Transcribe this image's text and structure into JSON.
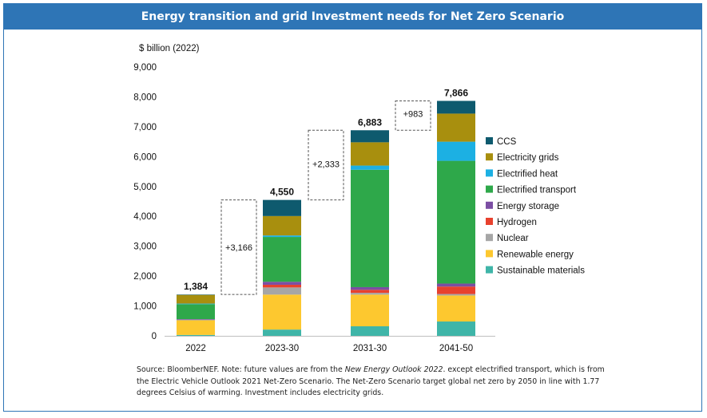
{
  "banner_title": "Energy transition and grid Investment needs for Net Zero Scenario",
  "chart_data": {
    "type": "bar",
    "stacked": true,
    "ylabel": "$ billion (2022)",
    "ylim": [
      0,
      9000
    ],
    "yticks": [
      0,
      1000,
      2000,
      3000,
      4000,
      5000,
      6000,
      7000,
      8000,
      9000
    ],
    "ytick_labels": [
      "0",
      "1,000",
      "2,000",
      "3,000",
      "4,000",
      "5,000",
      "6,000",
      "7,000",
      "8,000",
      "9,000"
    ],
    "categories": [
      "2022",
      "2023-30",
      "2031-30",
      "2041-50"
    ],
    "totals": [
      "1,384",
      "4,550",
      "6,883",
      "7,866"
    ],
    "increments": [
      "+3,166",
      "+2,333",
      "+983"
    ],
    "grid": false,
    "legend_position": "right",
    "series": [
      {
        "name": "Sustainable materials",
        "color": "#3fb5a8",
        "values": [
          30,
          210,
          320,
          480
        ]
      },
      {
        "name": "Renewable energy",
        "color": "#fdc82f",
        "values": [
          490,
          1170,
          1060,
          870
        ]
      },
      {
        "name": "Nuclear",
        "color": "#a6a6a6",
        "values": [
          20,
          240,
          60,
          50
        ]
      },
      {
        "name": "Hydrogen",
        "color": "#e8412e",
        "values": [
          0,
          90,
          100,
          250
        ]
      },
      {
        "name": "Energy storage",
        "color": "#7b4ea3",
        "values": [
          20,
          100,
          90,
          100
        ]
      },
      {
        "name": "Electrified transport",
        "color": "#2ea84a",
        "values": [
          500,
          1500,
          3930,
          4110
        ]
      },
      {
        "name": "Electrified heat",
        "color": "#1cb0e3",
        "values": [
          20,
          50,
          140,
          640
        ]
      },
      {
        "name": "Electricity grids",
        "color": "#a88f0e",
        "values": [
          290,
          650,
          780,
          940
        ]
      },
      {
        "name": "CCS",
        "color": "#0e5a6e",
        "values": [
          14,
          540,
          403,
          426
        ]
      }
    ]
  },
  "source_note": {
    "p1": "Source: BloomberNEF. Note: future values are from the ",
    "italic": "New Energy Outlook 2022",
    "p2": ". except electrified transport, which is from the Electric Vehicle Outlook 2021 Net-Zero Scenario. The Net-Zero Scenario target global net zero by 2050 in line with 1.77 degrees Celsius of warming. Investment includes electricity grids."
  }
}
